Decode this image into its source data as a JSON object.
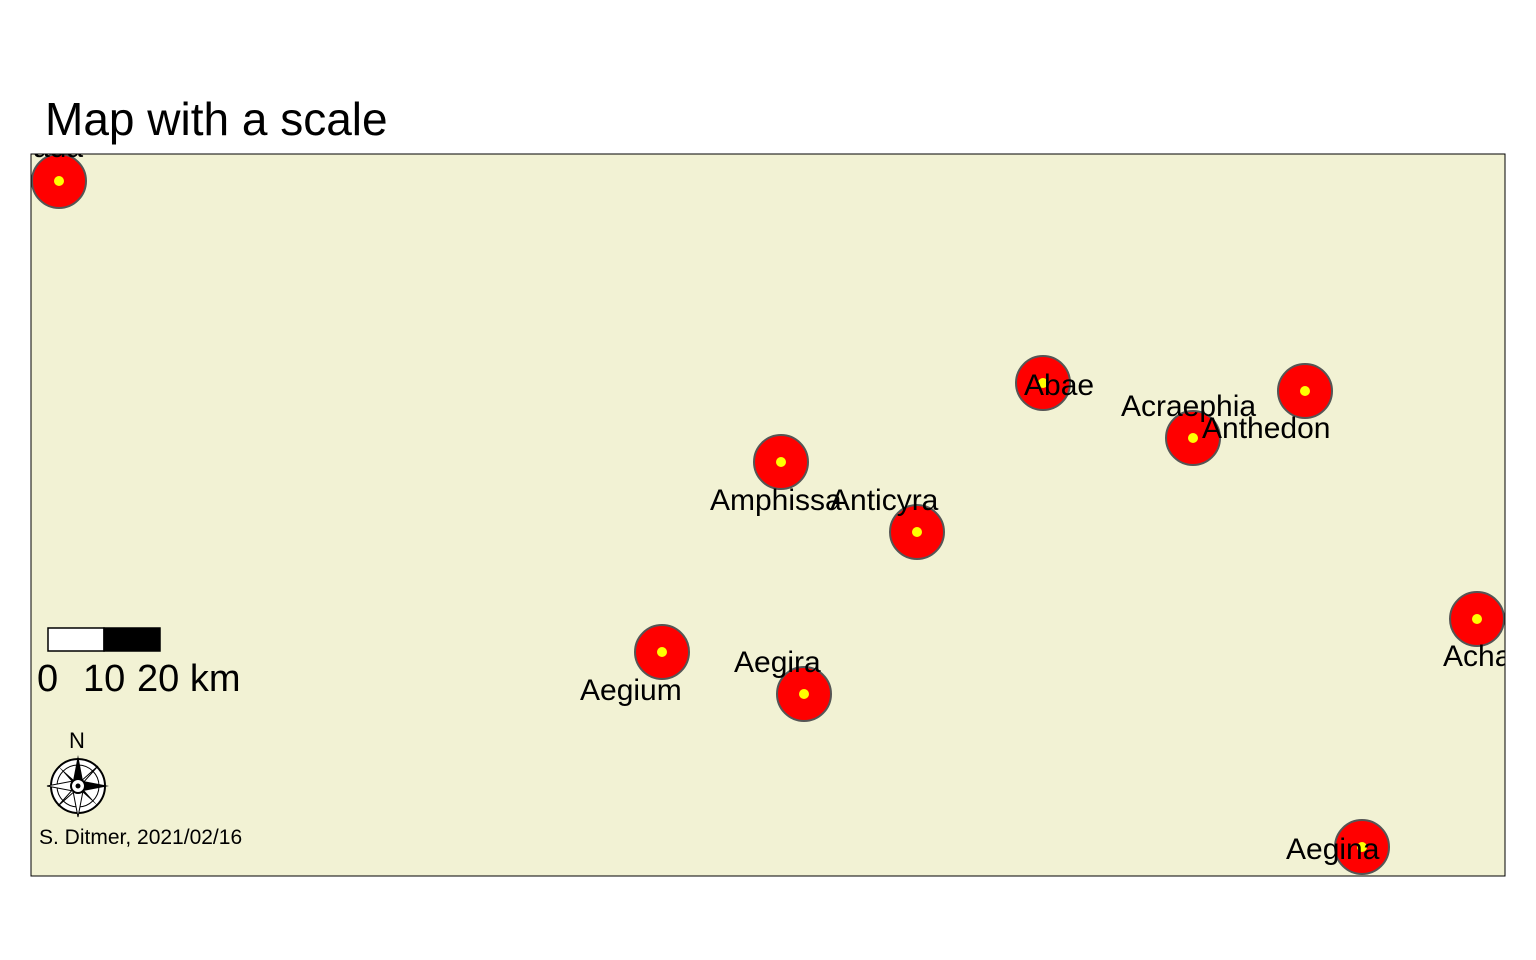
{
  "title": "Map with a scale",
  "colors": {
    "background": "#f2f2d4",
    "site_fill": "#ff0000",
    "site_center": "#ffff00",
    "site_border": "#555555"
  },
  "sites": [
    {
      "name": "Abae",
      "label": "Abae"
    },
    {
      "name": "Acraephia",
      "label": "Acraephia"
    },
    {
      "name": "Anthedon",
      "label": "Anthedon"
    },
    {
      "name": "Amphissa",
      "label": "Amphissa"
    },
    {
      "name": "Anticyra",
      "label": "Anticyra"
    },
    {
      "name": "Aegium",
      "label": "Aegium"
    },
    {
      "name": "Aegira",
      "label": "Aegira"
    },
    {
      "name": "Aegina",
      "label": "Aegina"
    },
    {
      "name": "Acha",
      "label": "Acha"
    },
    {
      "name": "ada",
      "label": "ada"
    }
  ],
  "scale_bar": {
    "labels": [
      "0",
      "10",
      "20 km"
    ]
  },
  "north_arrow": {
    "label": "N",
    "icon": "compass-rose-icon"
  },
  "credit": "S. Ditmer, 2021/02/16"
}
